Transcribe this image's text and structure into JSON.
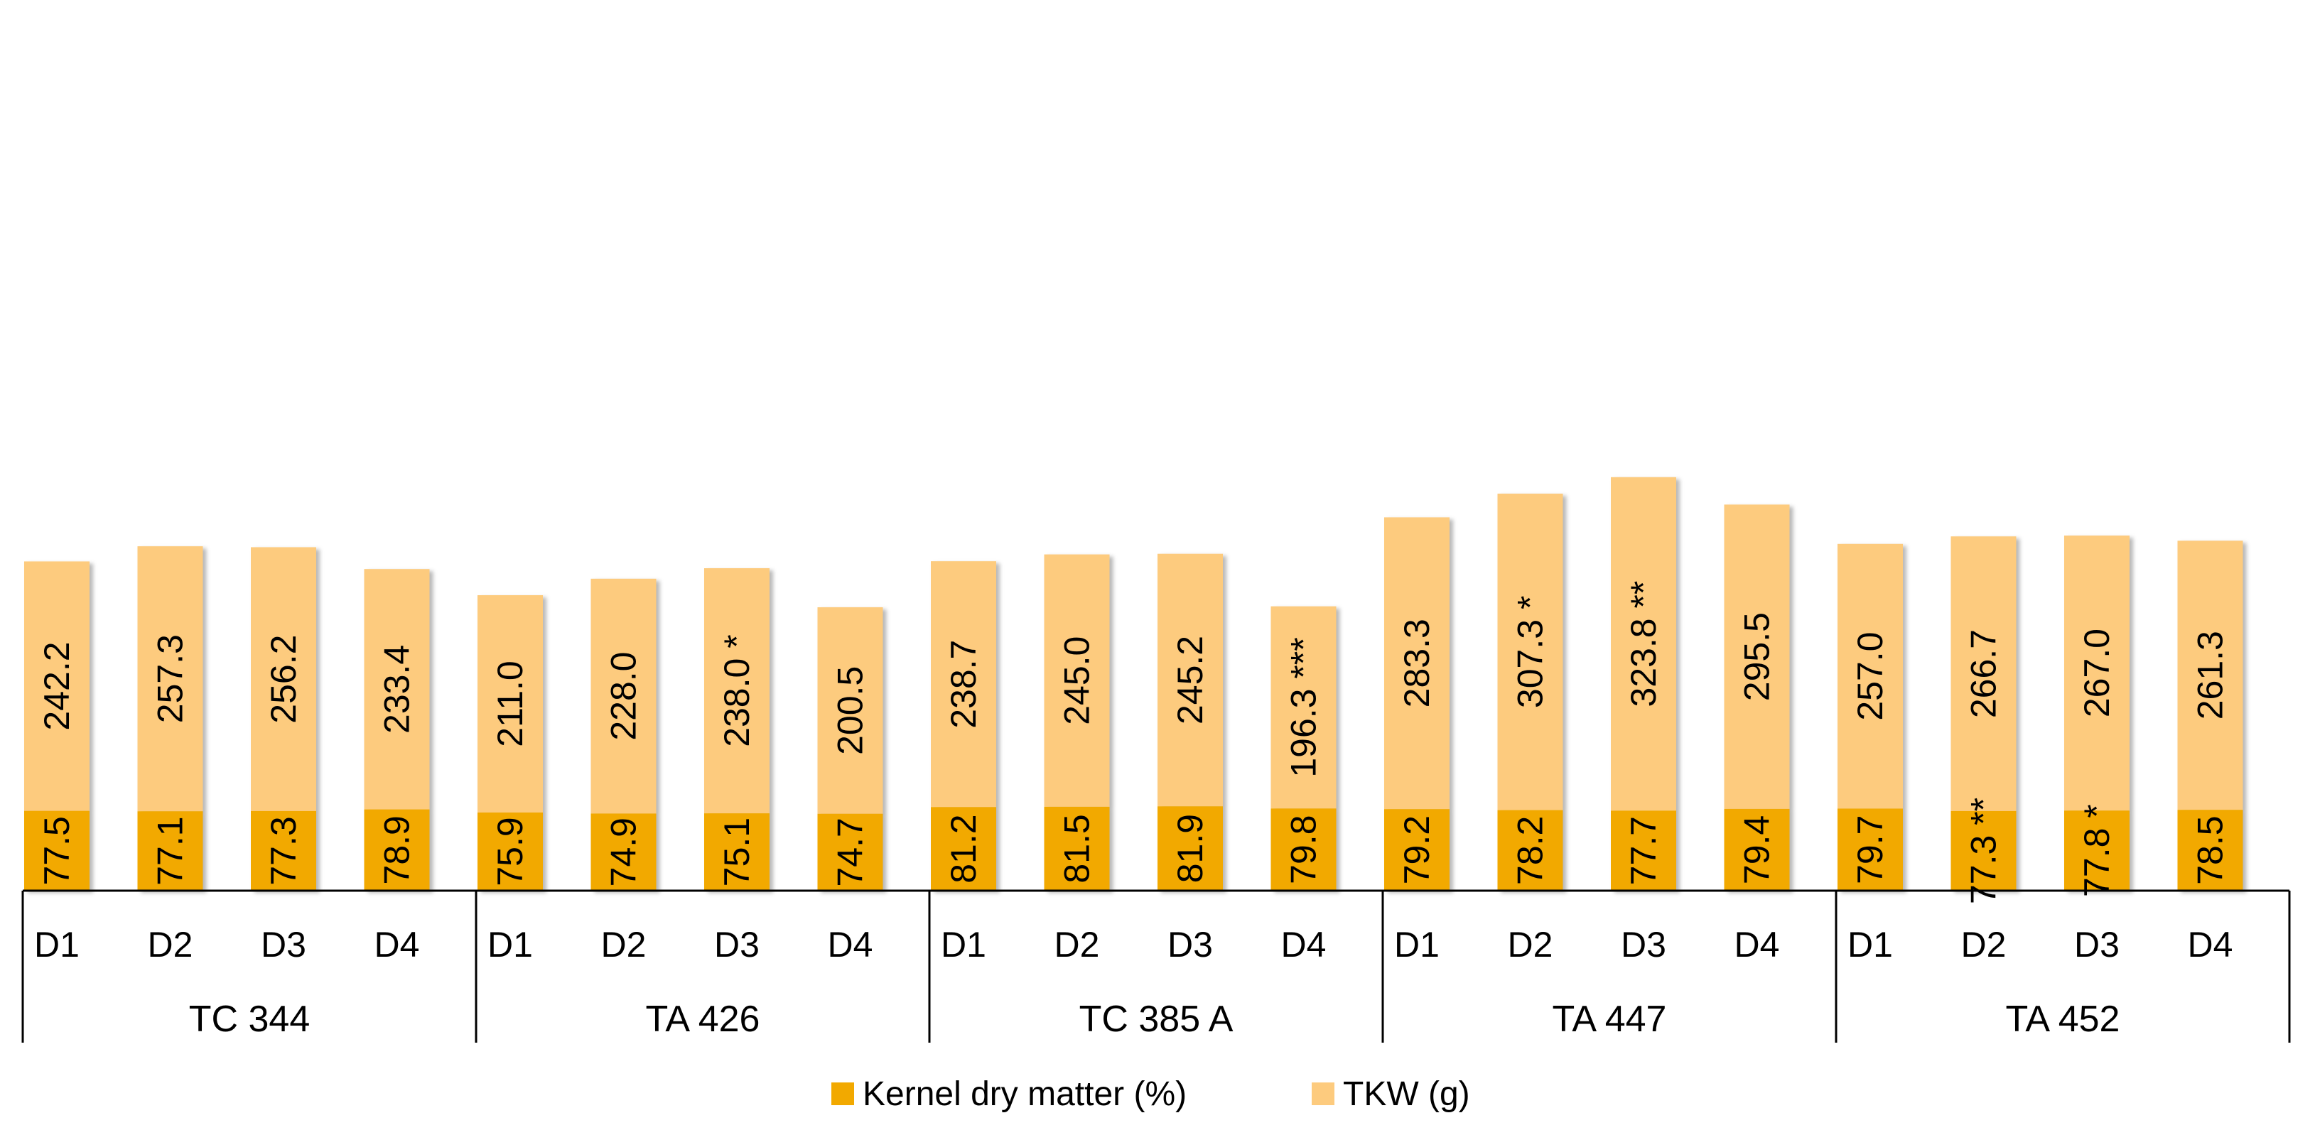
{
  "chart_data": {
    "type": "bar",
    "stacked": true,
    "title": "",
    "xlabel": "",
    "ylabel": "",
    "groups": [
      "TC 344",
      "TA 426",
      "TC 385 A",
      "TA 447",
      "TA 452"
    ],
    "subcategories": [
      "D1",
      "D2",
      "D3",
      "D4"
    ],
    "series": [
      {
        "name": "Kernel dry matter (%)",
        "color": "#f2a900",
        "values": [
          77.5,
          77.1,
          77.3,
          78.9,
          75.9,
          74.9,
          75.1,
          74.7,
          81.2,
          81.5,
          81.9,
          79.8,
          79.2,
          78.2,
          77.7,
          79.4,
          79.7,
          77.3,
          77.8,
          78.5
        ],
        "labels": [
          "77.5",
          "77.1",
          "77.3",
          "78.9",
          "75.9",
          "74.9",
          "75.1",
          "74.7",
          "81.2",
          "81.5",
          "81.9",
          "79.8",
          "79.2",
          "78.2",
          "77.7",
          "79.4",
          "79.7",
          "77.3 **",
          "77.8 *",
          "78.5"
        ]
      },
      {
        "name": "TKW (g)",
        "color": "#fdcb7e",
        "values": [
          242.2,
          257.3,
          256.2,
          233.4,
          211.0,
          228.0,
          238.0,
          200.5,
          238.7,
          245.0,
          245.2,
          196.3,
          283.3,
          307.3,
          323.8,
          295.5,
          257.0,
          266.7,
          267.0,
          261.3
        ],
        "labels": [
          "242.2",
          "257.3",
          "256.2",
          "233.4",
          "211.0",
          "228.0",
          "238.0 *",
          "200.5",
          "238.7",
          "245.0",
          "245.2",
          "196.3 ***",
          "283.3",
          "307.3 *",
          "323.8 **",
          "295.5",
          "257.0",
          "266.7",
          "267.0",
          "261.3"
        ]
      }
    ],
    "legend_position": "bottom",
    "grid": false
  }
}
